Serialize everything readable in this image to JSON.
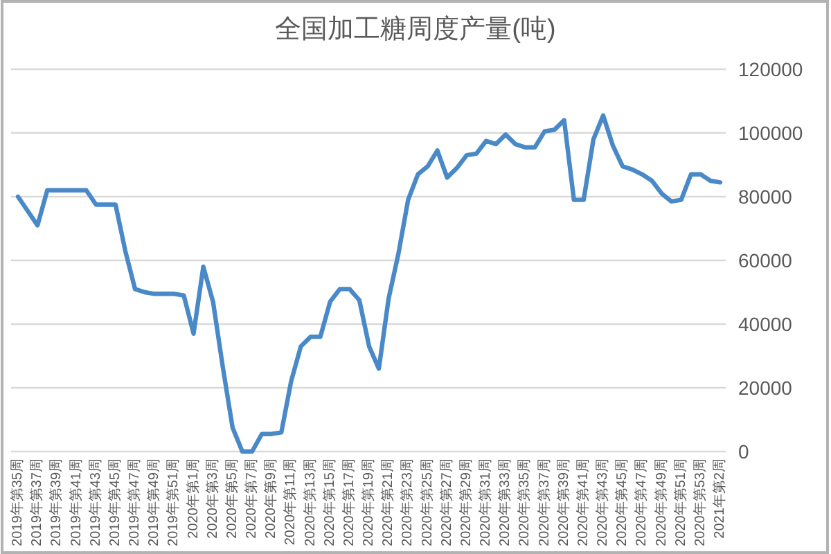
{
  "chart_data": {
    "type": "line",
    "title": "全国加工糖周度产量(吨)",
    "categories": [
      "2019年第35周",
      null,
      "2019年第37周",
      null,
      "2019年第39周",
      null,
      "2019年第41周",
      null,
      "2019年第43周",
      null,
      "2019年第45周",
      null,
      "2019年第47周",
      null,
      "2019年第49周",
      null,
      "2019年第51周",
      null,
      "2020年第1周",
      null,
      "2020年第3周",
      null,
      "2020年第5周",
      null,
      "2020年第7周",
      null,
      "2020年第9周",
      null,
      "2020年第11周",
      null,
      "2020年第13周",
      null,
      "2020年第15周",
      null,
      "2020年第17周",
      null,
      "2020年第19周",
      null,
      "2020年第21周",
      null,
      "2020年第23周",
      null,
      "2020年第25周",
      null,
      "2020年第27周",
      null,
      "2020年第29周",
      null,
      "2020年第31周",
      null,
      "2020年第33周",
      null,
      "2020年第35周",
      null,
      "2020年第37周",
      null,
      "2020年第39周",
      null,
      "2020年第41周",
      null,
      "2020年第43周",
      null,
      "2020年第45周",
      null,
      "2020年第47周",
      null,
      "2020年第49周",
      null,
      "2020年第51周",
      null,
      "2020年第53周",
      null,
      "2021年第2周"
    ],
    "values": [
      80000,
      75500,
      71000,
      82000,
      82000,
      82000,
      82000,
      82000,
      77500,
      77500,
      77500,
      63000,
      51000,
      50000,
      49500,
      49500,
      49500,
      49000,
      37000,
      58000,
      47000,
      26500,
      7500,
      0,
      0,
      5500,
      5500,
      6000,
      22000,
      33000,
      36000,
      36000,
      47000,
      51000,
      51000,
      47500,
      33000,
      26000,
      48000,
      62000,
      79000,
      87000,
      89500,
      94500,
      86000,
      89000,
      93000,
      93500,
      97500,
      96500,
      99500,
      96500,
      95500,
      95500,
      100500,
      101000,
      104000,
      79000,
      79000,
      98000,
      105500,
      96000,
      89500,
      88500,
      87000,
      85000,
      81000,
      78500,
      79000,
      87000,
      87000,
      85000,
      84500
    ],
    "color": "#4a89c8",
    "ylim": [
      0,
      120000
    ],
    "yticks": [
      0,
      20000,
      40000,
      60000,
      80000,
      100000,
      120000
    ],
    "grid": "y"
  }
}
